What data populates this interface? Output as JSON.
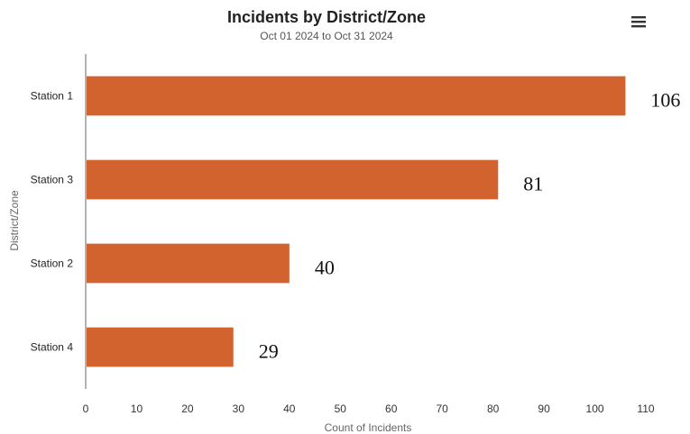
{
  "chart_data": {
    "type": "bar",
    "orientation": "horizontal",
    "title": "Incidents by District/Zone",
    "subtitle": "Oct 01  2024 to Oct 31  2024",
    "xlabel": "Count of Incidents",
    "ylabel": "District/Zone",
    "categories": [
      "Station 1",
      "Station 3",
      "Station 2",
      "Station 4"
    ],
    "values": [
      106,
      81,
      40,
      29
    ],
    "data_labels": [
      "106",
      "81",
      "40",
      "29"
    ],
    "xlim": [
      0,
      110
    ],
    "x_ticks": [
      "0",
      "10",
      "20",
      "30",
      "40",
      "50",
      "60",
      "70",
      "80",
      "90",
      "100",
      "110"
    ],
    "grid": false,
    "bar_color": "#d2622e"
  },
  "toolbar": {
    "menu_icon": "hamburger-menu-icon"
  }
}
